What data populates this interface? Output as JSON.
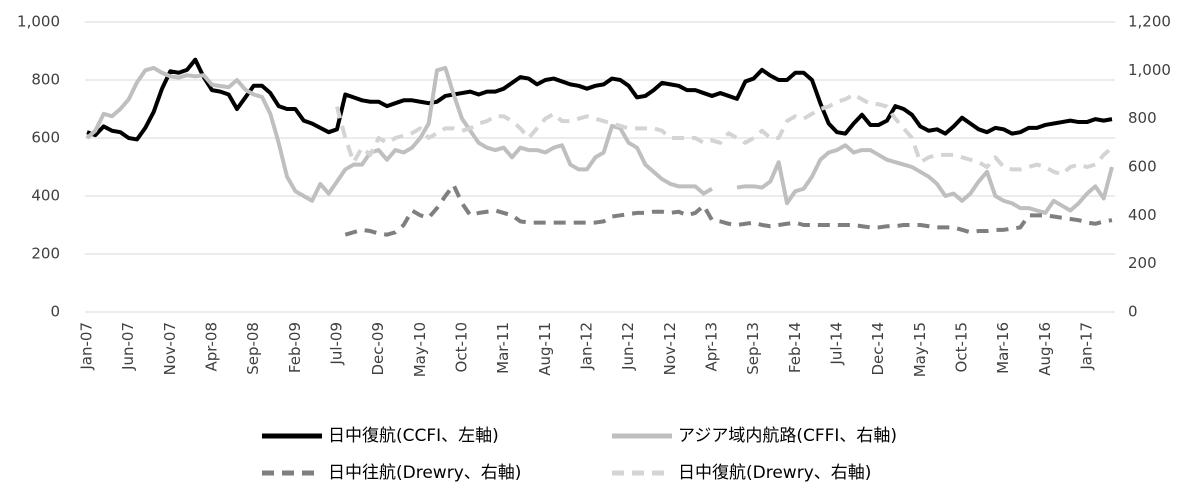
{
  "chart_data": {
    "type": "line",
    "categories": [
      "Jan-07",
      null,
      null,
      null,
      null,
      "Jun-07",
      null,
      null,
      null,
      null,
      "Nov-07",
      null,
      null,
      null,
      null,
      "Apr-08",
      null,
      null,
      null,
      null,
      "Sep-08",
      null,
      null,
      null,
      null,
      "Feb-09",
      null,
      null,
      null,
      null,
      "Jul-09",
      null,
      null,
      null,
      null,
      "Dec-09",
      null,
      null,
      null,
      null,
      "May-10",
      null,
      null,
      null,
      null,
      "Oct-10",
      null,
      null,
      null,
      null,
      "Mar-11",
      null,
      null,
      null,
      null,
      "Aug-11",
      null,
      null,
      null,
      null,
      "Jan-12",
      null,
      null,
      null,
      null,
      "Jun-12",
      null,
      null,
      null,
      null,
      "Nov-12",
      null,
      null,
      null,
      null,
      "Apr-13",
      null,
      null,
      null,
      null,
      "Sep-13",
      null,
      null,
      null,
      null,
      "Feb-14",
      null,
      null,
      null,
      null,
      "Jul-14",
      null,
      null,
      null,
      null,
      "Dec-14",
      null,
      null,
      null,
      null,
      "May-15",
      null,
      null,
      null,
      null,
      "Oct-15",
      null,
      null,
      null,
      null,
      "Mar-16",
      null,
      null,
      null,
      null,
      "Aug-16",
      null,
      null,
      null,
      null,
      "Jan-17",
      null,
      null,
      null
    ],
    "series": [
      {
        "name": "日中復航(CCFI、左軸)",
        "color": "#000000",
        "dash": false,
        "axis": "y",
        "values": [
          620,
          610,
          640,
          625,
          620,
          600,
          595,
          635,
          690,
          770,
          830,
          825,
          835,
          870,
          810,
          765,
          760,
          750,
          700,
          740,
          780,
          780,
          755,
          710,
          700,
          700,
          660,
          650,
          635,
          620,
          630,
          750,
          740,
          730,
          725,
          725,
          710,
          720,
          730,
          730,
          725,
          720,
          725,
          745,
          750,
          755,
          760,
          750,
          760,
          760,
          770,
          790,
          810,
          805,
          785,
          800,
          805,
          795,
          785,
          780,
          770,
          780,
          785,
          805,
          800,
          780,
          740,
          745,
          765,
          790,
          785,
          780,
          765,
          765,
          755,
          745,
          755,
          745,
          735,
          795,
          805,
          835,
          815,
          800,
          800,
          825,
          825,
          800,
          720,
          650,
          620,
          615,
          650,
          680,
          645,
          645,
          660,
          710,
          700,
          680,
          640,
          625,
          630,
          615,
          640,
          670,
          650,
          630,
          620,
          635,
          630,
          615,
          620,
          635,
          635,
          645,
          650,
          655,
          660,
          655,
          655,
          665,
          660,
          665
        ]
      },
      {
        "name": "アジア域内航路(CFFI、右軸)",
        "color": "#bfbfbf",
        "dash": false,
        "axis": "y2",
        "values": [
          720,
          750,
          820,
          810,
          840,
          880,
          950,
          1000,
          1010,
          990,
          975,
          970,
          980,
          975,
          980,
          940,
          935,
          930,
          960,
          920,
          900,
          890,
          820,
          700,
          560,
          500,
          480,
          460,
          530,
          490,
          540,
          590,
          610,
          610,
          660,
          670,
          630,
          670,
          660,
          680,
          720,
          780,
          1000,
          1010,
          900,
          800,
          750,
          700,
          680,
          670,
          680,
          640,
          680,
          670,
          670,
          660,
          680,
          690,
          610,
          590,
          590,
          640,
          660,
          770,
          760,
          700,
          680,
          610,
          580,
          550,
          530,
          520,
          520,
          520,
          490,
          510,
          null,
          null,
          515,
          520,
          520,
          515,
          540,
          620,
          450,
          500,
          510,
          560,
          630,
          660,
          670,
          690,
          660,
          670,
          670,
          650,
          630,
          620,
          610,
          600,
          580,
          560,
          530,
          480,
          490,
          460,
          490,
          540,
          580,
          480,
          460,
          450,
          430,
          430,
          420,
          410,
          460,
          440,
          420,
          450,
          490,
          520,
          470,
          600
        ]
      },
      {
        "name": "日中往航(Drewry、右軸)",
        "color": "#7f7f7f",
        "dash": true,
        "axis": "y2",
        "values": [
          null,
          null,
          null,
          null,
          null,
          null,
          null,
          null,
          null,
          null,
          null,
          null,
          null,
          null,
          null,
          null,
          null,
          null,
          null,
          null,
          null,
          null,
          null,
          null,
          null,
          null,
          null,
          null,
          null,
          null,
          null,
          320,
          330,
          340,
          335,
          325,
          320,
          330,
          360,
          420,
          400,
          390,
          430,
          480,
          525,
          450,
          400,
          410,
          415,
          420,
          410,
          400,
          375,
          370,
          370,
          370,
          370,
          370,
          370,
          370,
          370,
          370,
          375,
          395,
          400,
          405,
          410,
          410,
          415,
          415,
          410,
          415,
          400,
          410,
          440,
          380,
          375,
          365,
          360,
          365,
          370,
          360,
          355,
          360,
          365,
          370,
          360,
          360,
          360,
          360,
          360,
          360,
          360,
          355,
          350,
          350,
          355,
          355,
          360,
          360,
          360,
          355,
          350,
          350,
          350,
          340,
          330,
          335,
          335,
          340,
          340,
          345,
          350,
          400,
          400,
          400,
          395,
          390,
          385,
          380,
          370,
          365,
          375,
          380
        ]
      },
      {
        "name": "日中復航(Drewry、右軸)",
        "color": "#d4d4d4",
        "dash": true,
        "axis": "y2",
        "values": [
          null,
          null,
          null,
          null,
          null,
          null,
          null,
          null,
          null,
          null,
          null,
          null,
          null,
          null,
          null,
          null,
          null,
          null,
          null,
          null,
          null,
          null,
          null,
          null,
          null,
          null,
          null,
          null,
          null,
          null,
          850,
          720,
          620,
          680,
          650,
          720,
          700,
          720,
          730,
          740,
          760,
          720,
          740,
          760,
          760,
          750,
          760,
          780,
          790,
          810,
          810,
          790,
          760,
          720,
          760,
          800,
          820,
          790,
          790,
          800,
          810,
          800,
          790,
          780,
          770,
          760,
          760,
          760,
          760,
          750,
          720,
          720,
          720,
          720,
          700,
          710,
          700,
          740,
          720,
          700,
          720,
          750,
          720,
          720,
          790,
          810,
          800,
          820,
          840,
          850,
          870,
          880,
          900,
          880,
          860,
          860,
          850,
          800,
          760,
          720,
          620,
          640,
          650,
          650,
          650,
          640,
          630,
          620,
          600,
          640,
          600,
          590,
          590,
          600,
          610,
          600,
          580,
          570,
          600,
          610,
          600,
          610,
          650,
          680
        ]
      }
    ],
    "ylim": [
      0,
      1000
    ],
    "yticks": [
      0,
      200,
      400,
      600,
      800,
      {
        "value": 1000,
        "label": "1,000"
      }
    ],
    "y2lim": [
      0,
      1200
    ],
    "y2ticks": [
      0,
      200,
      400,
      600,
      800,
      {
        "value": 1000,
        "label": "1,000"
      },
      {
        "value": 1200,
        "label": "1,200"
      }
    ],
    "grid": true,
    "legend": "bottom"
  }
}
